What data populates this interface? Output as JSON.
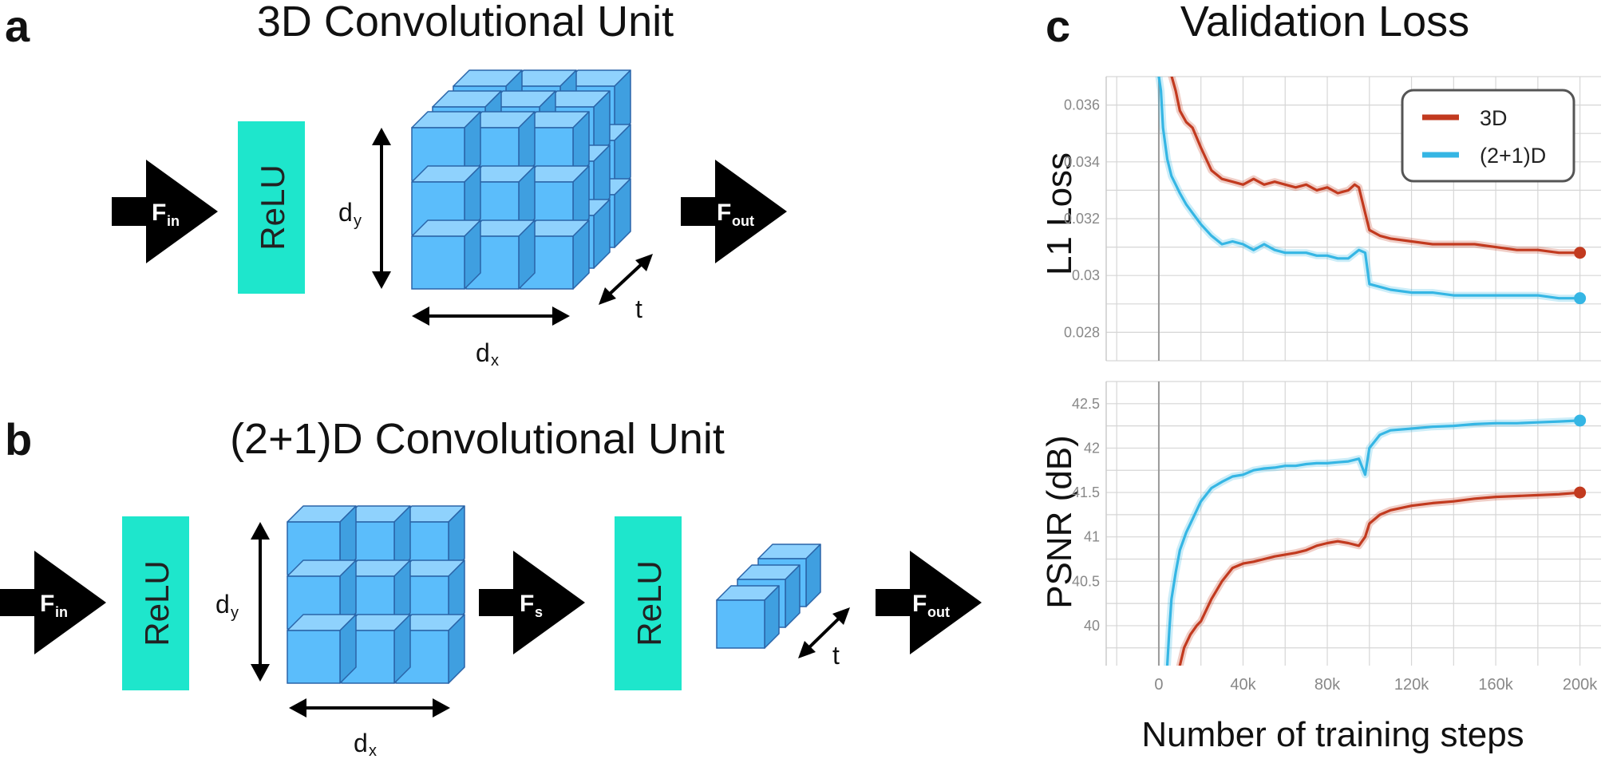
{
  "panels": {
    "a": {
      "letter": "a",
      "title": "3D Convolutional Unit"
    },
    "b": {
      "letter": "b",
      "title": "(2+1)D Convolutional Unit"
    },
    "c": {
      "letter": "c"
    }
  },
  "labels": {
    "f_main": "F",
    "f_in_sub": "in",
    "f_out_sub": "out",
    "f_s_sub": "s",
    "relu": "ReLU",
    "d": "d",
    "d_y_sub": "y",
    "d_x_sub": "x",
    "t": "t"
  },
  "colors": {
    "relu": "#1ee6cc",
    "cube_front": "#5bbdfb",
    "cube_top": "#8fd2fd",
    "cube_side": "#3f9fe0",
    "cube_edge": "#2a64a8",
    "series_3d": "#c23a1f",
    "series_21d": "#35b6e4"
  },
  "chart_data": [
    {
      "type": "line",
      "title": "Validation Loss",
      "xlabel": "",
      "ylabel": "L1 Loss",
      "xlim": [
        -25000,
        210000
      ],
      "ylim": [
        0.027,
        0.037
      ],
      "yticks": [
        0.028,
        0.03,
        0.032,
        0.034,
        0.036
      ],
      "ytick_labels": [
        "0.028",
        "0.03",
        "0.032",
        "0.034",
        "0.036"
      ],
      "grid": true,
      "legend": "top-right",
      "series": [
        {
          "name": "3D",
          "x": [
            0,
            2000,
            5000,
            8000,
            10000,
            13000,
            16000,
            20000,
            25000,
            30000,
            35000,
            40000,
            45000,
            50000,
            55000,
            60000,
            65000,
            70000,
            75000,
            80000,
            85000,
            90000,
            93000,
            95000,
            98000,
            100000,
            105000,
            110000,
            120000,
            130000,
            140000,
            150000,
            160000,
            170000,
            180000,
            190000,
            200000
          ],
          "y": [
            0.0375,
            0.0375,
            0.0373,
            0.0365,
            0.0358,
            0.0354,
            0.0352,
            0.0345,
            0.0337,
            0.0334,
            0.0333,
            0.0332,
            0.0334,
            0.0332,
            0.0333,
            0.0332,
            0.0331,
            0.0332,
            0.033,
            0.0331,
            0.0329,
            0.033,
            0.0332,
            0.0331,
            0.0322,
            0.0316,
            0.0314,
            0.0313,
            0.0312,
            0.0311,
            0.0311,
            0.0311,
            0.031,
            0.0309,
            0.0309,
            0.0308,
            0.0308
          ]
        },
        {
          "name": "(2+1)D",
          "x": [
            0,
            1000,
            2000,
            4000,
            6000,
            8000,
            10000,
            13000,
            16000,
            20000,
            25000,
            30000,
            35000,
            40000,
            45000,
            50000,
            55000,
            60000,
            65000,
            70000,
            75000,
            80000,
            85000,
            90000,
            95000,
            98000,
            100000,
            105000,
            110000,
            120000,
            130000,
            140000,
            150000,
            160000,
            170000,
            180000,
            190000,
            200000
          ],
          "y": [
            0.037,
            0.0365,
            0.0352,
            0.0341,
            0.0335,
            0.0332,
            0.0329,
            0.0325,
            0.0322,
            0.0318,
            0.0314,
            0.0311,
            0.0312,
            0.0311,
            0.0309,
            0.0311,
            0.0309,
            0.0308,
            0.0308,
            0.0308,
            0.0307,
            0.0307,
            0.0306,
            0.0306,
            0.0309,
            0.0308,
            0.0297,
            0.0296,
            0.0295,
            0.0294,
            0.0294,
            0.0293,
            0.0293,
            0.0293,
            0.0293,
            0.0293,
            0.0292,
            0.0292
          ]
        }
      ]
    },
    {
      "type": "line",
      "xlabel": "Number of training steps",
      "ylabel": "PSNR (dB)",
      "xlim": [
        -25000,
        210000
      ],
      "ylim": [
        39.55,
        42.75
      ],
      "xticks": [
        0,
        40000,
        80000,
        120000,
        160000,
        200000
      ],
      "xtick_labels": [
        "0",
        "40k",
        "80k",
        "120k",
        "160k",
        "200k"
      ],
      "yticks": [
        40,
        40.5,
        41,
        41.5,
        42,
        42.5
      ],
      "ytick_labels": [
        "40",
        "40.5",
        "41",
        "41.5",
        "42",
        "42.5"
      ],
      "grid": true,
      "series": [
        {
          "name": "3D",
          "x": [
            10000,
            12000,
            15000,
            18000,
            20000,
            25000,
            30000,
            35000,
            40000,
            45000,
            50000,
            55000,
            60000,
            65000,
            70000,
            75000,
            80000,
            85000,
            90000,
            95000,
            98000,
            100000,
            105000,
            110000,
            120000,
            130000,
            140000,
            150000,
            160000,
            170000,
            180000,
            190000,
            200000
          ],
          "y": [
            39.55,
            39.75,
            39.9,
            40.0,
            40.05,
            40.3,
            40.5,
            40.65,
            40.7,
            40.72,
            40.75,
            40.78,
            40.8,
            40.82,
            40.85,
            40.9,
            40.93,
            40.95,
            40.93,
            40.9,
            41.0,
            41.15,
            41.25,
            41.3,
            41.35,
            41.38,
            41.4,
            41.43,
            41.45,
            41.46,
            41.47,
            41.48,
            41.5
          ]
        },
        {
          "name": "(2+1)D",
          "x": [
            4000,
            5000,
            6000,
            8000,
            10000,
            13000,
            16000,
            20000,
            25000,
            30000,
            35000,
            40000,
            45000,
            50000,
            55000,
            60000,
            65000,
            70000,
            75000,
            80000,
            85000,
            90000,
            95000,
            98000,
            100000,
            105000,
            110000,
            120000,
            130000,
            140000,
            150000,
            160000,
            170000,
            180000,
            190000,
            200000
          ],
          "y": [
            39.55,
            39.95,
            40.3,
            40.6,
            40.85,
            41.05,
            41.2,
            41.4,
            41.55,
            41.62,
            41.68,
            41.7,
            41.75,
            41.77,
            41.78,
            41.8,
            41.8,
            41.82,
            41.83,
            41.83,
            41.84,
            41.85,
            41.88,
            41.7,
            42.0,
            42.15,
            42.2,
            42.22,
            42.24,
            42.25,
            42.27,
            42.28,
            42.28,
            42.29,
            42.3,
            42.31
          ]
        }
      ]
    }
  ]
}
